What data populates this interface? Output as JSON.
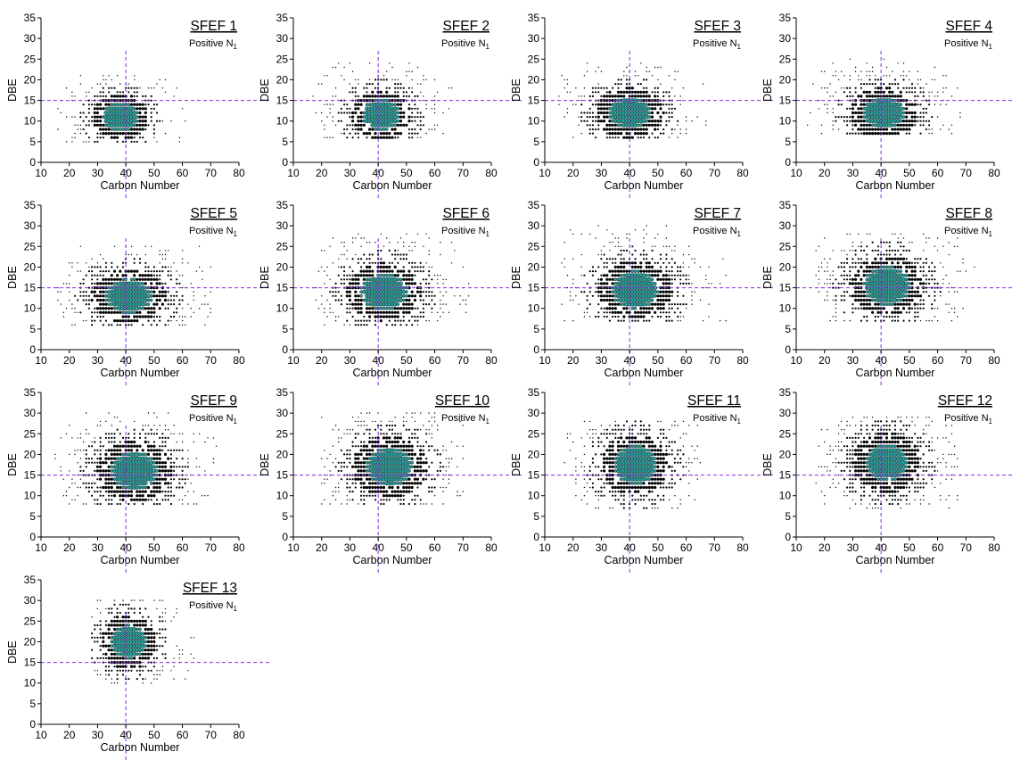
{
  "colors": {
    "background": "#ffffff",
    "axis": "#000000",
    "point_outer": "#000000",
    "point_core": "#2a9d9b",
    "reference_line": "#8a2be2"
  },
  "chart_data": [
    {
      "type": "scatter",
      "title": "SFEF 1",
      "subtitle_main": "Positive N",
      "subtitle_sub": "1",
      "xlabel": "Carbon Number",
      "ylabel": "DBE",
      "xlim": [
        10,
        80
      ],
      "ylim": [
        0,
        35
      ],
      "xticks": [
        10,
        20,
        30,
        40,
        50,
        60,
        70,
        80
      ],
      "yticks": [
        0,
        5,
        10,
        15,
        20,
        25,
        30,
        35
      ],
      "reference_lines": {
        "x": 40,
        "y": 15
      },
      "x_range": [
        16,
        62
      ],
      "y_range": [
        5,
        21
      ],
      "center": [
        38,
        11
      ],
      "spread": [
        4.5,
        2.5
      ],
      "grid": false,
      "legend": "none"
    },
    {
      "type": "scatter",
      "title": "SFEF 2",
      "subtitle_main": "Positive N",
      "subtitle_sub": "1",
      "xlabel": "Carbon Number",
      "ylabel": "DBE",
      "xlim": [
        10,
        80
      ],
      "ylim": [
        0,
        35
      ],
      "xticks": [
        10,
        20,
        30,
        40,
        50,
        60,
        70,
        80
      ],
      "yticks": [
        0,
        5,
        10,
        15,
        20,
        25,
        30,
        35
      ],
      "reference_lines": {
        "x": 40,
        "y": 15
      },
      "x_range": [
        17,
        68
      ],
      "y_range": [
        6,
        24
      ],
      "center": [
        41,
        11.5
      ],
      "spread": [
        5,
        2.7
      ],
      "grid": false,
      "legend": "none"
    },
    {
      "type": "scatter",
      "title": "SFEF 3",
      "subtitle_main": "Positive N",
      "subtitle_sub": "1",
      "xlabel": "Carbon Number",
      "ylabel": "DBE",
      "xlim": [
        10,
        80
      ],
      "ylim": [
        0,
        35
      ],
      "xticks": [
        10,
        20,
        30,
        40,
        50,
        60,
        70,
        80
      ],
      "yticks": [
        0,
        5,
        10,
        15,
        20,
        25,
        30,
        35
      ],
      "reference_lines": {
        "x": 40,
        "y": 15
      },
      "x_range": [
        15,
        67
      ],
      "y_range": [
        6,
        24
      ],
      "center": [
        40,
        12
      ],
      "spread": [
        5.5,
        2.8
      ],
      "grid": false,
      "legend": "none"
    },
    {
      "type": "scatter",
      "title": "SFEF 4",
      "subtitle_main": "Positive N",
      "subtitle_sub": "1",
      "xlabel": "Carbon Number",
      "ylabel": "DBE",
      "xlim": [
        10,
        80
      ],
      "ylim": [
        0,
        35
      ],
      "xticks": [
        10,
        20,
        30,
        40,
        50,
        60,
        70,
        80
      ],
      "yticks": [
        0,
        5,
        10,
        15,
        20,
        25,
        30,
        35
      ],
      "reference_lines": {
        "x": 40,
        "y": 15
      },
      "x_range": [
        14,
        68
      ],
      "y_range": [
        7,
        25
      ],
      "center": [
        41,
        12
      ],
      "spread": [
        5.5,
        2.8
      ],
      "grid": false,
      "legend": "none"
    },
    {
      "type": "scatter",
      "title": "SFEF 5",
      "subtitle_main": "Positive N",
      "subtitle_sub": "1",
      "xlabel": "Carbon Number",
      "ylabel": "DBE",
      "xlim": [
        10,
        80
      ],
      "ylim": [
        0,
        35
      ],
      "xticks": [
        10,
        20,
        30,
        40,
        50,
        60,
        70,
        80
      ],
      "yticks": [
        0,
        5,
        10,
        15,
        20,
        25,
        30,
        35
      ],
      "reference_lines": {
        "x": 40,
        "y": 15
      },
      "x_range": [
        16,
        70
      ],
      "y_range": [
        6,
        25
      ],
      "center": [
        41,
        13
      ],
      "spread": [
        6,
        3
      ],
      "grid": false,
      "legend": "none"
    },
    {
      "type": "scatter",
      "title": "SFEF 6",
      "subtitle_main": "Positive N",
      "subtitle_sub": "1",
      "xlabel": "Carbon Number",
      "ylabel": "DBE",
      "xlim": [
        10,
        80
      ],
      "ylim": [
        0,
        35
      ],
      "xticks": [
        10,
        20,
        30,
        40,
        50,
        60,
        70,
        80
      ],
      "yticks": [
        0,
        5,
        10,
        15,
        20,
        25,
        30,
        35
      ],
      "reference_lines": {
        "x": 40,
        "y": 15
      },
      "x_range": [
        17,
        72
      ],
      "y_range": [
        6,
        28
      ],
      "center": [
        42,
        14
      ],
      "spread": [
        6,
        3.2
      ],
      "grid": false,
      "legend": "none"
    },
    {
      "type": "scatter",
      "title": "SFEF 7",
      "subtitle_main": "Positive N",
      "subtitle_sub": "1",
      "xlabel": "Carbon Number",
      "ylabel": "DBE",
      "xlim": [
        10,
        80
      ],
      "ylim": [
        0,
        35
      ],
      "xticks": [
        10,
        20,
        30,
        40,
        50,
        60,
        70,
        80
      ],
      "yticks": [
        0,
        5,
        10,
        15,
        20,
        25,
        30,
        35
      ],
      "reference_lines": {
        "x": 40,
        "y": 15
      },
      "x_range": [
        16,
        74
      ],
      "y_range": [
        7,
        30
      ],
      "center": [
        42,
        14.5
      ],
      "spread": [
        6,
        3.3
      ],
      "grid": false,
      "legend": "none"
    },
    {
      "type": "scatter",
      "title": "SFEF 8",
      "subtitle_main": "Positive N",
      "subtitle_sub": "1",
      "xlabel": "Carbon Number",
      "ylabel": "DBE",
      "xlim": [
        10,
        80
      ],
      "ylim": [
        0,
        35
      ],
      "xticks": [
        10,
        20,
        30,
        40,
        50,
        60,
        70,
        80
      ],
      "yticks": [
        0,
        5,
        10,
        15,
        20,
        25,
        30,
        35
      ],
      "reference_lines": {
        "x": 40,
        "y": 15
      },
      "x_range": [
        17,
        75
      ],
      "y_range": [
        7,
        28
      ],
      "center": [
        42,
        15.5
      ],
      "spread": [
        6,
        3.4
      ],
      "grid": false,
      "legend": "none"
    },
    {
      "type": "scatter",
      "title": "SFEF 9",
      "subtitle_main": "Positive N",
      "subtitle_sub": "1",
      "xlabel": "Carbon Number",
      "ylabel": "DBE",
      "xlim": [
        10,
        80
      ],
      "ylim": [
        0,
        35
      ],
      "xticks": [
        10,
        20,
        30,
        40,
        50,
        60,
        70,
        80
      ],
      "yticks": [
        0,
        5,
        10,
        15,
        20,
        25,
        30,
        35
      ],
      "reference_lines": {
        "x": 40,
        "y": 15
      },
      "x_range": [
        15,
        72
      ],
      "y_range": [
        8,
        30
      ],
      "center": [
        43,
        16
      ],
      "spread": [
        6,
        3.4
      ],
      "grid": false,
      "legend": "none"
    },
    {
      "type": "scatter",
      "title": "SFEF 10",
      "subtitle_main": "Positive N",
      "subtitle_sub": "1",
      "xlabel": "Carbon Number",
      "ylabel": "DBE",
      "xlim": [
        10,
        80
      ],
      "ylim": [
        0,
        35
      ],
      "xticks": [
        10,
        20,
        30,
        40,
        50,
        60,
        70,
        80
      ],
      "yticks": [
        0,
        5,
        10,
        15,
        20,
        25,
        30,
        35
      ],
      "reference_lines": {
        "x": 40,
        "y": 15
      },
      "x_range": [
        20,
        70
      ],
      "y_range": [
        8,
        30
      ],
      "center": [
        44,
        17
      ],
      "spread": [
        6,
        3.4
      ],
      "grid": false,
      "legend": "none"
    },
    {
      "type": "scatter",
      "title": "SFEF 11",
      "subtitle_main": "Positive N",
      "subtitle_sub": "1",
      "xlabel": "Carbon Number",
      "ylabel": "DBE",
      "xlim": [
        10,
        80
      ],
      "ylim": [
        0,
        35
      ],
      "xticks": [
        10,
        20,
        30,
        40,
        50,
        60,
        70,
        80
      ],
      "yticks": [
        0,
        5,
        10,
        15,
        20,
        25,
        30,
        35
      ],
      "reference_lines": {
        "x": 40,
        "y": 15
      },
      "x_range": [
        17,
        65
      ],
      "y_range": [
        7,
        28
      ],
      "center": [
        42,
        17.5
      ],
      "spread": [
        5.5,
        3.4
      ],
      "grid": false,
      "legend": "none"
    },
    {
      "type": "scatter",
      "title": "SFEF 12",
      "subtitle_main": "Positive N",
      "subtitle_sub": "1",
      "xlabel": "Carbon Number",
      "ylabel": "DBE",
      "xlim": [
        10,
        80
      ],
      "ylim": [
        0,
        35
      ],
      "xticks": [
        10,
        20,
        30,
        40,
        50,
        60,
        70,
        80
      ],
      "yticks": [
        0,
        5,
        10,
        15,
        20,
        25,
        30,
        35
      ],
      "reference_lines": {
        "x": 40,
        "y": 15
      },
      "x_range": [
        16,
        68
      ],
      "y_range": [
        7,
        29
      ],
      "center": [
        42,
        18
      ],
      "spread": [
        5.5,
        3.3
      ],
      "grid": false,
      "legend": "none"
    },
    {
      "type": "scatter",
      "title": "SFEF 13",
      "subtitle_main": "Positive N",
      "subtitle_sub": "1",
      "xlabel": "Carbon Number",
      "ylabel": "DBE",
      "xlim": [
        10,
        80
      ],
      "ylim": [
        0,
        35
      ],
      "xticks": [
        10,
        20,
        30,
        40,
        50,
        60,
        70,
        80
      ],
      "yticks": [
        0,
        5,
        10,
        15,
        20,
        25,
        30,
        35
      ],
      "reference_lines": {
        "x": 40,
        "y": 15
      },
      "x_range": [
        28,
        64
      ],
      "y_range": [
        10,
        30
      ],
      "center": [
        41,
        20
      ],
      "spread": [
        4.5,
        3
      ],
      "grid": false,
      "legend": "none"
    }
  ]
}
